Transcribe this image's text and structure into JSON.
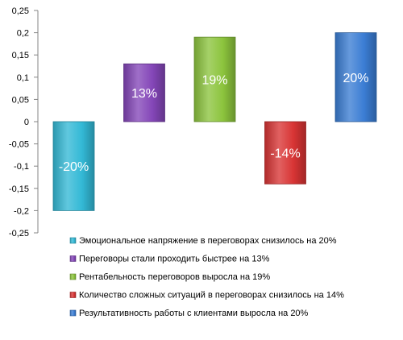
{
  "chart_data": {
    "type": "bar",
    "ylim": [
      -0.25,
      0.25
    ],
    "yticks": [
      0.25,
      0.2,
      0.15,
      0.1,
      0.05,
      0,
      -0.05,
      -0.1,
      -0.15,
      -0.2,
      -0.25
    ],
    "ytick_labels": [
      "0,25",
      "0,2",
      "0,15",
      "0,1",
      "0,05",
      "0",
      "-0,05",
      "-0,1",
      "-0,15",
      "-0,2",
      "-0,25"
    ],
    "grid": false,
    "legend_position": "bottom",
    "series": [
      {
        "name": "Эмоциональное напряжение  в переговорах снизилось на 20%",
        "value": -0.2,
        "label": "-20%",
        "color": "#33b9d6"
      },
      {
        "name": "Переговоры  стали проходить быстрее на 13%",
        "value": 0.13,
        "label": "13%",
        "color": "#8446b8"
      },
      {
        "name": "Рентабельность переговоров  выросла на 19%",
        "value": 0.19,
        "label": "19%",
        "color": "#8cc43d"
      },
      {
        "name": "Количество сложных ситуаций в переговорах снизилось на 14%",
        "value": -0.14,
        "label": "-14%",
        "color": "#d83434"
      },
      {
        "name": "Результативность работы с клиентами выросла на 20%",
        "value": 0.2,
        "label": "20%",
        "color": "#3b7dd4"
      }
    ]
  }
}
